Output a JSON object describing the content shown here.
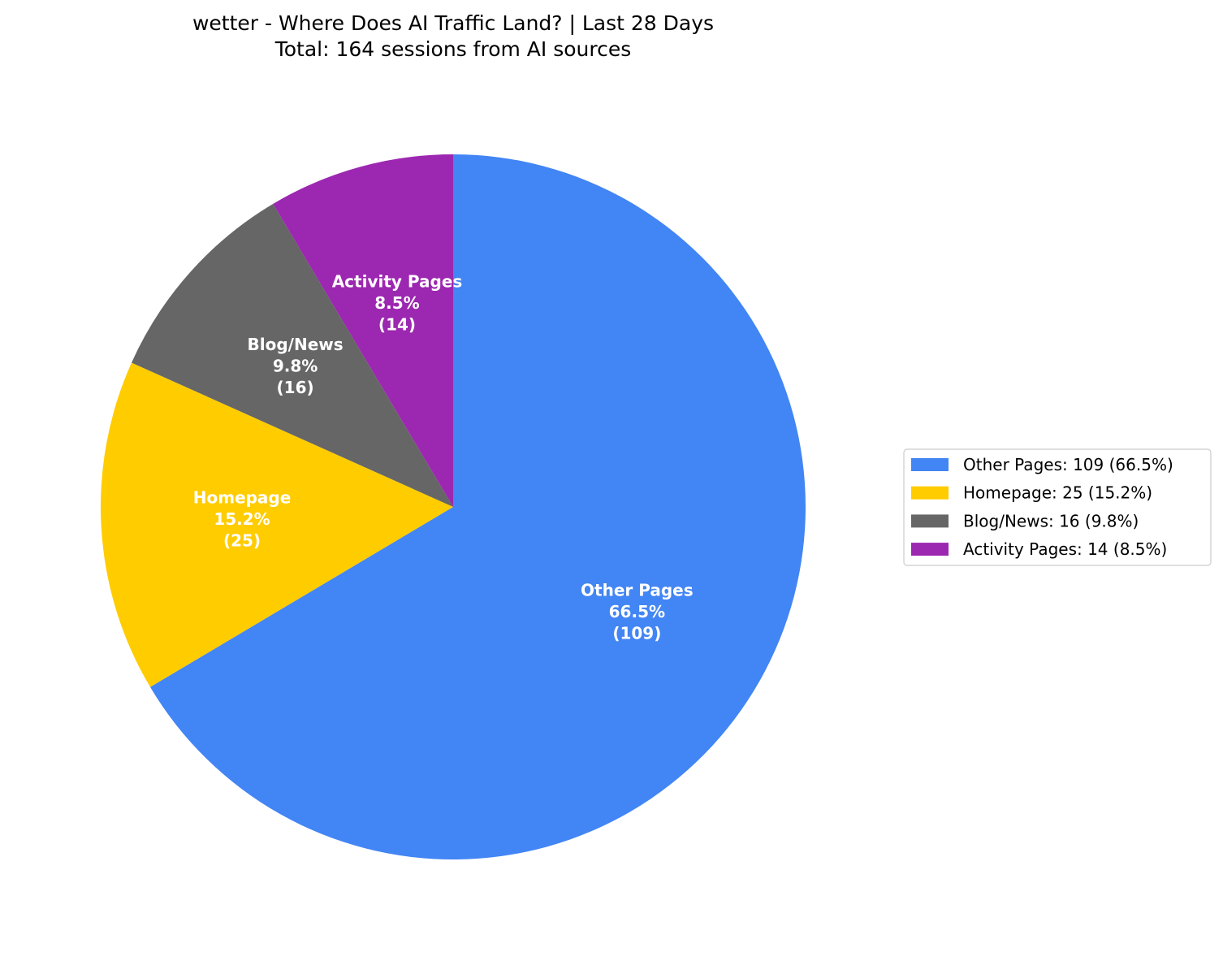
{
  "chart_data": {
    "type": "pie",
    "title": "wetter - Where Does AI Traffic Land? | Last 28 Days",
    "subtitle": "Total: 164 sessions from AI sources",
    "start_angle_deg": 90,
    "direction": "clockwise",
    "legend_placement": "right",
    "slices": [
      {
        "label": "Other Pages",
        "value": 109,
        "percent": "66.5%",
        "count_label": "(109)",
        "legend": "Other Pages: 109 (66.5%)",
        "color": "#4285F4"
      },
      {
        "label": "Homepage",
        "value": 25,
        "percent": "15.2%",
        "count_label": "(25)",
        "legend": "Homepage: 25 (15.2%)",
        "color": "#FFCC00"
      },
      {
        "label": "Blog/News",
        "value": 16,
        "percent": "9.8%",
        "count_label": "(16)",
        "legend": "Blog/News: 16 (9.8%)",
        "color": "#666666"
      },
      {
        "label": "Activity Pages",
        "value": 14,
        "percent": "8.5%",
        "count_label": "(14)",
        "legend": "Activity Pages: 14 (8.5%)",
        "color": "#9C27B0"
      }
    ]
  }
}
